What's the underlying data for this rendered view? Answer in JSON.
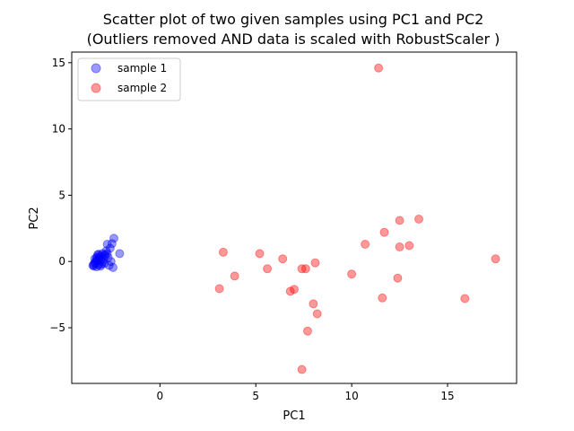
{
  "chart_data": {
    "type": "scatter",
    "title_lines": [
      "Scatter plot of two given samples using PC1 and PC2",
      "(Outliers removed AND data is scaled with RobustScaler )"
    ],
    "xlabel": "PC1",
    "ylabel": "PC2",
    "xlim": [
      -4.6,
      18.6
    ],
    "ylim": [
      -9.2,
      15.8
    ],
    "xticks": [
      0,
      5,
      10,
      15
    ],
    "xtick_labels": [
      "0",
      "5",
      "10",
      "15"
    ],
    "yticks": [
      -5,
      0,
      5,
      10,
      15
    ],
    "ytick_labels": [
      "−5",
      "0",
      "5",
      "10",
      "15"
    ],
    "grid": false,
    "legend_position": "top-left",
    "series": [
      {
        "name": "sample 1",
        "color": "#0000ff",
        "points": [
          [
            -3.5,
            -0.3
          ],
          [
            -3.45,
            -0.2
          ],
          [
            -3.4,
            -0.1
          ],
          [
            -3.35,
            0.0
          ],
          [
            -3.3,
            0.3
          ],
          [
            -3.25,
            0.5
          ],
          [
            -3.2,
            0.55
          ],
          [
            -3.15,
            0.4
          ],
          [
            -3.1,
            0.1
          ],
          [
            -3.05,
            -0.2
          ],
          [
            -3.0,
            0.6
          ],
          [
            -2.95,
            0.2
          ],
          [
            -2.9,
            0.5
          ],
          [
            -2.8,
            0.8
          ],
          [
            -2.75,
            1.3
          ],
          [
            -2.7,
            0.3
          ],
          [
            -2.65,
            -0.3
          ],
          [
            -2.6,
            1.0
          ],
          [
            -2.55,
            0.0
          ],
          [
            -2.5,
            1.35
          ],
          [
            -2.45,
            -0.45
          ],
          [
            -2.4,
            1.75
          ],
          [
            -2.1,
            0.6
          ],
          [
            -3.3,
            -0.4
          ],
          [
            -3.2,
            -0.25
          ],
          [
            -3.4,
            0.2
          ],
          [
            -3.1,
            -0.35
          ],
          [
            -2.9,
            -0.15
          ],
          [
            -3.15,
            0.3
          ],
          [
            -3.25,
            0.05
          ],
          [
            -2.85,
            0.45
          ],
          [
            -3.0,
            0.0
          ],
          [
            -3.3,
            0.15
          ],
          [
            -3.45,
            -0.35
          ],
          [
            -2.75,
            0.6
          ]
        ]
      },
      {
        "name": "sample 2",
        "color": "#ff0000",
        "points": [
          [
            11.4,
            14.6
          ],
          [
            13.5,
            3.2
          ],
          [
            12.5,
            3.1
          ],
          [
            11.7,
            2.2
          ],
          [
            10.7,
            1.3
          ],
          [
            13.0,
            1.2
          ],
          [
            12.5,
            1.1
          ],
          [
            3.3,
            0.7
          ],
          [
            5.2,
            0.6
          ],
          [
            6.4,
            0.2
          ],
          [
            17.5,
            0.2
          ],
          [
            8.1,
            -0.1
          ],
          [
            7.4,
            -0.55
          ],
          [
            7.6,
            -0.55
          ],
          [
            5.6,
            -0.55
          ],
          [
            10.0,
            -0.95
          ],
          [
            3.9,
            -1.1
          ],
          [
            12.4,
            -1.25
          ],
          [
            3.1,
            -2.05
          ],
          [
            7.0,
            -2.1
          ],
          [
            6.8,
            -2.25
          ],
          [
            11.6,
            -2.75
          ],
          [
            15.9,
            -2.8
          ],
          [
            8.0,
            -3.2
          ],
          [
            8.2,
            -3.95
          ],
          [
            7.7,
            -5.25
          ],
          [
            7.4,
            -8.15
          ]
        ]
      }
    ]
  }
}
